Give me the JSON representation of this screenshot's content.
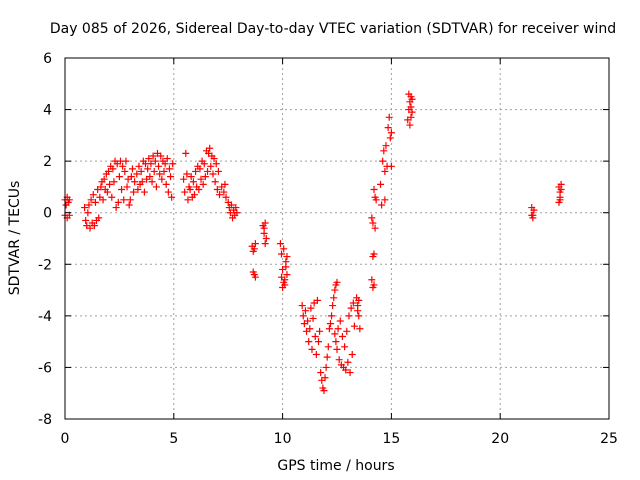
{
  "chart_data": {
    "type": "scatter",
    "title": "Day 085 of 2026, Sidereal Day-to-day VTEC variation (SDTVAR) for receiver wind",
    "xlabel": "GPS time / hours",
    "ylabel": "SDTVAR / TECUs",
    "xlim": [
      0,
      25
    ],
    "ylim": [
      -8,
      6
    ],
    "xticks": [
      "0",
      "5",
      "10",
      "15",
      "20",
      "25"
    ],
    "yticks": [
      "-8",
      "-6",
      "-4",
      "-2",
      "0",
      "2",
      "4",
      "6"
    ],
    "grid": true,
    "marker": "+",
    "color": "#ff0000",
    "series": [
      {
        "name": "SDTVAR",
        "points": [
          [
            0.0,
            0.5
          ],
          [
            0.05,
            0.3
          ],
          [
            0.1,
            0.6
          ],
          [
            0.15,
            0.4
          ],
          [
            0.2,
            0.5
          ],
          [
            0.0,
            -0.1
          ],
          [
            0.1,
            -0.2
          ],
          [
            0.2,
            -0.1
          ],
          [
            0.9,
            0.2
          ],
          [
            0.95,
            -0.3
          ],
          [
            1.0,
            -0.5
          ],
          [
            1.05,
            0.0
          ],
          [
            1.1,
            0.3
          ],
          [
            1.15,
            -0.6
          ],
          [
            1.2,
            0.5
          ],
          [
            1.25,
            -0.4
          ],
          [
            1.3,
            0.7
          ],
          [
            1.35,
            -0.5
          ],
          [
            1.4,
            0.4
          ],
          [
            1.45,
            -0.3
          ],
          [
            1.5,
            0.9
          ],
          [
            1.55,
            -0.2
          ],
          [
            1.6,
            0.6
          ],
          [
            1.65,
            1.0
          ],
          [
            1.7,
            1.2
          ],
          [
            1.75,
            0.5
          ],
          [
            1.8,
            1.3
          ],
          [
            1.85,
            0.9
          ],
          [
            1.9,
            1.5
          ],
          [
            1.95,
            0.8
          ],
          [
            2.0,
            1.6
          ],
          [
            2.05,
            1.1
          ],
          [
            2.1,
            1.8
          ],
          [
            2.15,
            0.6
          ],
          [
            2.2,
            1.7
          ],
          [
            2.25,
            1.2
          ],
          [
            2.3,
            2.0
          ],
          [
            2.35,
            0.2
          ],
          [
            2.4,
            1.9
          ],
          [
            2.45,
            0.4
          ],
          [
            2.5,
            1.4
          ],
          [
            2.55,
            2.0
          ],
          [
            2.6,
            0.9
          ],
          [
            2.65,
            1.8
          ],
          [
            2.7,
            0.5
          ],
          [
            2.75,
            1.6
          ],
          [
            2.8,
            2.0
          ],
          [
            2.85,
            1.0
          ],
          [
            2.9,
            1.3
          ],
          [
            2.95,
            0.3
          ],
          [
            3.0,
            0.5
          ],
          [
            3.05,
            1.4
          ],
          [
            3.1,
            1.7
          ],
          [
            3.15,
            0.8
          ],
          [
            3.2,
            1.2
          ],
          [
            3.3,
            1.5
          ],
          [
            3.35,
            0.9
          ],
          [
            3.4,
            1.8
          ],
          [
            3.45,
            1.1
          ],
          [
            3.5,
            1.6
          ],
          [
            3.55,
            1.2
          ],
          [
            3.6,
            2.0
          ],
          [
            3.65,
            0.8
          ],
          [
            3.7,
            1.9
          ],
          [
            3.75,
            1.3
          ],
          [
            3.8,
            1.7
          ],
          [
            3.85,
            2.1
          ],
          [
            3.9,
            1.4
          ],
          [
            3.95,
            1.9
          ],
          [
            4.0,
            1.2
          ],
          [
            4.05,
            2.2
          ],
          [
            4.1,
            1.6
          ],
          [
            4.15,
            2.0
          ],
          [
            4.2,
            1.0
          ],
          [
            4.25,
            2.3
          ],
          [
            4.3,
            1.8
          ],
          [
            4.35,
            1.5
          ],
          [
            4.4,
            2.2
          ],
          [
            4.45,
            1.3
          ],
          [
            4.5,
            2.0
          ],
          [
            4.55,
            1.6
          ],
          [
            4.6,
            1.9
          ],
          [
            4.65,
            1.1
          ],
          [
            4.7,
            2.1
          ],
          [
            4.75,
            0.8
          ],
          [
            4.8,
            1.7
          ],
          [
            4.85,
            1.4
          ],
          [
            4.9,
            0.6
          ],
          [
            4.95,
            1.9
          ],
          [
            5.45,
            1.3
          ],
          [
            5.5,
            0.8
          ],
          [
            5.55,
            2.3
          ],
          [
            5.6,
            1.5
          ],
          [
            5.65,
            0.5
          ],
          [
            5.7,
            1.0
          ],
          [
            5.75,
            0.9
          ],
          [
            5.8,
            1.4
          ],
          [
            5.85,
            0.6
          ],
          [
            5.9,
            1.2
          ],
          [
            5.95,
            0.7
          ],
          [
            6.0,
            1.6
          ],
          [
            6.05,
            1.0
          ],
          [
            6.1,
            1.8
          ],
          [
            6.15,
            0.9
          ],
          [
            6.2,
            1.7
          ],
          [
            6.25,
            1.3
          ],
          [
            6.3,
            2.0
          ],
          [
            6.35,
            1.1
          ],
          [
            6.4,
            1.9
          ],
          [
            6.45,
            1.4
          ],
          [
            6.5,
            2.4
          ],
          [
            6.55,
            1.6
          ],
          [
            6.6,
            2.3
          ],
          [
            6.65,
            2.5
          ],
          [
            6.7,
            1.8
          ],
          [
            6.75,
            2.2
          ],
          [
            6.8,
            1.5
          ],
          [
            6.85,
            2.1
          ],
          [
            6.9,
            1.2
          ],
          [
            6.95,
            1.9
          ],
          [
            7.0,
            0.9
          ],
          [
            7.05,
            1.6
          ],
          [
            7.1,
            0.7
          ],
          [
            7.2,
            1.0
          ],
          [
            7.3,
            0.8
          ],
          [
            7.35,
            1.1
          ],
          [
            7.4,
            0.6
          ],
          [
            7.5,
            0.4
          ],
          [
            7.55,
            0.2
          ],
          [
            7.6,
            0.0
          ],
          [
            7.65,
            0.3
          ],
          [
            7.7,
            -0.2
          ],
          [
            7.75,
            0.1
          ],
          [
            7.8,
            -0.1
          ],
          [
            7.85,
            0.2
          ],
          [
            7.9,
            0.0
          ],
          [
            8.6,
            -1.3
          ],
          [
            8.65,
            -1.5
          ],
          [
            8.7,
            -1.4
          ],
          [
            8.75,
            -1.2
          ],
          [
            8.65,
            -2.3
          ],
          [
            8.7,
            -2.4
          ],
          [
            8.75,
            -2.5
          ],
          [
            9.1,
            -0.5
          ],
          [
            9.15,
            -0.8
          ],
          [
            9.2,
            -0.4
          ],
          [
            9.25,
            -1.0
          ],
          [
            9.2,
            -1.2
          ],
          [
            9.15,
            -0.6
          ],
          [
            9.9,
            -1.2
          ],
          [
            9.95,
            -1.6
          ],
          [
            10.0,
            -2.2
          ],
          [
            10.05,
            -1.4
          ],
          [
            10.1,
            -2.6
          ],
          [
            10.15,
            -1.9
          ],
          [
            10.0,
            -2.9
          ],
          [
            10.1,
            -2.8
          ],
          [
            10.2,
            -2.4
          ],
          [
            10.15,
            -2.1
          ],
          [
            9.95,
            -2.5
          ],
          [
            10.05,
            -2.7
          ],
          [
            10.2,
            -1.7
          ],
          [
            10.9,
            -3.6
          ],
          [
            10.95,
            -4.0
          ],
          [
            11.0,
            -4.3
          ],
          [
            11.05,
            -3.8
          ],
          [
            11.1,
            -4.6
          ],
          [
            11.15,
            -4.2
          ],
          [
            11.2,
            -5.0
          ],
          [
            11.25,
            -4.5
          ],
          [
            11.3,
            -3.7
          ],
          [
            11.35,
            -5.3
          ],
          [
            11.4,
            -4.1
          ],
          [
            11.45,
            -3.5
          ],
          [
            11.5,
            -4.8
          ],
          [
            11.55,
            -5.5
          ],
          [
            11.6,
            -3.4
          ],
          [
            11.65,
            -5.0
          ],
          [
            11.7,
            -4.6
          ],
          [
            11.75,
            -6.2
          ],
          [
            11.8,
            -6.5
          ],
          [
            11.85,
            -6.8
          ],
          [
            11.9,
            -6.9
          ],
          [
            11.95,
            -6.4
          ],
          [
            12.0,
            -6.0
          ],
          [
            12.05,
            -5.6
          ],
          [
            12.1,
            -5.2
          ],
          [
            12.15,
            -4.5
          ],
          [
            12.2,
            -4.3
          ],
          [
            12.25,
            -4.0
          ],
          [
            12.3,
            -3.6
          ],
          [
            12.35,
            -3.3
          ],
          [
            12.4,
            -3.0
          ],
          [
            12.45,
            -2.8
          ],
          [
            12.5,
            -2.7
          ],
          [
            12.4,
            -4.7
          ],
          [
            12.45,
            -5.0
          ],
          [
            12.5,
            -5.3
          ],
          [
            12.55,
            -4.5
          ],
          [
            12.6,
            -5.7
          ],
          [
            12.65,
            -4.2
          ],
          [
            12.7,
            -5.9
          ],
          [
            12.75,
            -4.8
          ],
          [
            12.8,
            -6.0
          ],
          [
            12.85,
            -5.2
          ],
          [
            12.9,
            -6.1
          ],
          [
            12.95,
            -4.6
          ],
          [
            13.0,
            -5.8
          ],
          [
            13.05,
            -4.0
          ],
          [
            13.1,
            -6.2
          ],
          [
            13.15,
            -3.7
          ],
          [
            13.2,
            -5.5
          ],
          [
            13.25,
            -3.5
          ],
          [
            13.3,
            -4.4
          ],
          [
            13.4,
            -3.3
          ],
          [
            13.45,
            -3.6
          ],
          [
            13.5,
            -4.0
          ],
          [
            13.55,
            -4.5
          ],
          [
            13.5,
            -3.4
          ],
          [
            13.45,
            -3.8
          ],
          [
            14.1,
            -0.2
          ],
          [
            14.15,
            -0.4
          ],
          [
            14.2,
            -1.6
          ],
          [
            14.15,
            -1.7
          ],
          [
            14.1,
            -2.6
          ],
          [
            14.15,
            -2.9
          ],
          [
            14.2,
            -2.8
          ],
          [
            14.25,
            -0.6
          ],
          [
            14.2,
            0.9
          ],
          [
            14.25,
            0.6
          ],
          [
            14.3,
            0.5
          ],
          [
            14.5,
            1.1
          ],
          [
            14.55,
            0.3
          ],
          [
            14.6,
            2.0
          ],
          [
            14.65,
            2.4
          ],
          [
            14.7,
            1.6
          ],
          [
            14.75,
            2.6
          ],
          [
            14.7,
            0.5
          ],
          [
            14.8,
            1.8
          ],
          [
            14.85,
            3.3
          ],
          [
            14.9,
            3.7
          ],
          [
            14.95,
            2.9
          ],
          [
            15.0,
            3.1
          ],
          [
            15.0,
            1.8
          ],
          [
            15.75,
            3.6
          ],
          [
            15.8,
            4.0
          ],
          [
            15.85,
            4.3
          ],
          [
            15.9,
            4.5
          ],
          [
            15.95,
            3.9
          ],
          [
            15.8,
            4.6
          ],
          [
            15.9,
            3.7
          ],
          [
            15.85,
            3.4
          ],
          [
            15.9,
            4.1
          ],
          [
            15.95,
            4.4
          ],
          [
            21.45,
            0.2
          ],
          [
            21.5,
            -0.1
          ],
          [
            21.55,
            0.1
          ],
          [
            21.5,
            -0.2
          ],
          [
            21.45,
            -0.1
          ],
          [
            22.7,
            0.4
          ],
          [
            22.75,
            0.8
          ],
          [
            22.8,
            1.1
          ],
          [
            22.75,
            0.5
          ],
          [
            22.8,
            0.9
          ],
          [
            22.7,
            1.0
          ],
          [
            22.75,
            0.6
          ]
        ]
      }
    ]
  }
}
